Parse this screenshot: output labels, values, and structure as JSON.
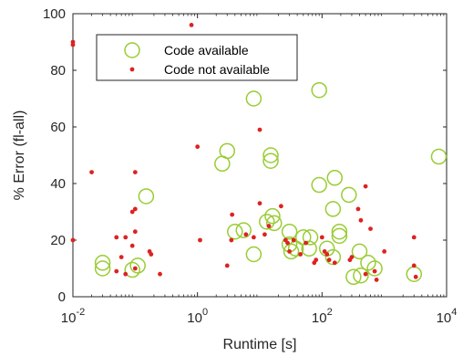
{
  "chart_data": {
    "type": "scatter",
    "title": "",
    "xlabel": "Runtime [s]",
    "ylabel": "% Error (fl-all)",
    "xscale": "log",
    "xlim": [
      0.01,
      10000
    ],
    "ylim": [
      0,
      100
    ],
    "x_ticks": [
      {
        "value": 0.01,
        "base": "10",
        "exp": "-2"
      },
      {
        "value": 1,
        "base": "10",
        "exp": "0"
      },
      {
        "value": 100,
        "base": "10",
        "exp": "2"
      },
      {
        "value": 10000,
        "base": "10",
        "exp": "4"
      }
    ],
    "y_ticks": [
      0,
      20,
      40,
      60,
      80,
      100
    ],
    "grid": false,
    "legend_position": "top-left",
    "colors": {
      "code_available": "#99cc33",
      "code_not_available": "#dd2222",
      "axis": "#262626"
    },
    "series": [
      {
        "name": "Code available",
        "marker": "open-circle",
        "points": [
          {
            "x": 0.03,
            "y": 12
          },
          {
            "x": 0.03,
            "y": 10
          },
          {
            "x": 0.09,
            "y": 9.5
          },
          {
            "x": 0.11,
            "y": 11
          },
          {
            "x": 0.15,
            "y": 35.5
          },
          {
            "x": 2.5,
            "y": 47
          },
          {
            "x": 3.0,
            "y": 51.5
          },
          {
            "x": 4.0,
            "y": 23
          },
          {
            "x": 5.5,
            "y": 23.5
          },
          {
            "x": 8.0,
            "y": 70
          },
          {
            "x": 8.0,
            "y": 15
          },
          {
            "x": 13,
            "y": 26.5
          },
          {
            "x": 15,
            "y": 50
          },
          {
            "x": 15,
            "y": 48
          },
          {
            "x": 16,
            "y": 28.5
          },
          {
            "x": 17,
            "y": 26
          },
          {
            "x": 30,
            "y": 23
          },
          {
            "x": 30,
            "y": 18.5
          },
          {
            "x": 32,
            "y": 16
          },
          {
            "x": 38,
            "y": 17
          },
          {
            "x": 50,
            "y": 21
          },
          {
            "x": 65,
            "y": 21
          },
          {
            "x": 62,
            "y": 17
          },
          {
            "x": 90,
            "y": 73
          },
          {
            "x": 90,
            "y": 39.5
          },
          {
            "x": 120,
            "y": 17
          },
          {
            "x": 150,
            "y": 31
          },
          {
            "x": 160,
            "y": 42
          },
          {
            "x": 150,
            "y": 14
          },
          {
            "x": 190,
            "y": 23
          },
          {
            "x": 190,
            "y": 21.5
          },
          {
            "x": 270,
            "y": 36
          },
          {
            "x": 320,
            "y": 7
          },
          {
            "x": 400,
            "y": 16
          },
          {
            "x": 420,
            "y": 7.5
          },
          {
            "x": 550,
            "y": 12
          },
          {
            "x": 700,
            "y": 10
          },
          {
            "x": 3000,
            "y": 8
          },
          {
            "x": 7500,
            "y": 49.5
          }
        ]
      },
      {
        "name": "Code not available",
        "marker": "filled-dot",
        "points": [
          {
            "x": 0.01,
            "y": 90
          },
          {
            "x": 0.01,
            "y": 89
          },
          {
            "x": 0.01,
            "y": 20
          },
          {
            "x": 0.02,
            "y": 44
          },
          {
            "x": 0.05,
            "y": 21
          },
          {
            "x": 0.05,
            "y": 9
          },
          {
            "x": 0.06,
            "y": 14
          },
          {
            "x": 0.07,
            "y": 21
          },
          {
            "x": 0.07,
            "y": 8
          },
          {
            "x": 0.09,
            "y": 30
          },
          {
            "x": 0.09,
            "y": 18
          },
          {
            "x": 0.1,
            "y": 44
          },
          {
            "x": 0.1,
            "y": 31
          },
          {
            "x": 0.1,
            "y": 23
          },
          {
            "x": 0.1,
            "y": 10
          },
          {
            "x": 0.17,
            "y": 16
          },
          {
            "x": 0.18,
            "y": 15
          },
          {
            "x": 0.25,
            "y": 8
          },
          {
            "x": 0.8,
            "y": 96
          },
          {
            "x": 1.0,
            "y": 53
          },
          {
            "x": 1.1,
            "y": 20
          },
          {
            "x": 3.0,
            "y": 11
          },
          {
            "x": 3.5,
            "y": 20
          },
          {
            "x": 3.6,
            "y": 29
          },
          {
            "x": 6.0,
            "y": 22
          },
          {
            "x": 8.0,
            "y": 21
          },
          {
            "x": 10,
            "y": 59
          },
          {
            "x": 10,
            "y": 33
          },
          {
            "x": 12,
            "y": 22
          },
          {
            "x": 14,
            "y": 25
          },
          {
            "x": 22,
            "y": 32
          },
          {
            "x": 26,
            "y": 20
          },
          {
            "x": 28,
            "y": 19
          },
          {
            "x": 30,
            "y": 16
          },
          {
            "x": 35,
            "y": 20
          },
          {
            "x": 45,
            "y": 15
          },
          {
            "x": 55,
            "y": 19
          },
          {
            "x": 75,
            "y": 12
          },
          {
            "x": 80,
            "y": 13
          },
          {
            "x": 100,
            "y": 21
          },
          {
            "x": 110,
            "y": 16
          },
          {
            "x": 120,
            "y": 15
          },
          {
            "x": 130,
            "y": 13
          },
          {
            "x": 160,
            "y": 12
          },
          {
            "x": 280,
            "y": 13
          },
          {
            "x": 300,
            "y": 14
          },
          {
            "x": 380,
            "y": 31
          },
          {
            "x": 420,
            "y": 27
          },
          {
            "x": 500,
            "y": 39
          },
          {
            "x": 500,
            "y": 8
          },
          {
            "x": 600,
            "y": 24
          },
          {
            "x": 700,
            "y": 9
          },
          {
            "x": 750,
            "y": 6
          },
          {
            "x": 1000,
            "y": 16
          },
          {
            "x": 3000,
            "y": 21
          },
          {
            "x": 3000,
            "y": 11
          },
          {
            "x": 3200,
            "y": 7
          }
        ]
      }
    ]
  }
}
